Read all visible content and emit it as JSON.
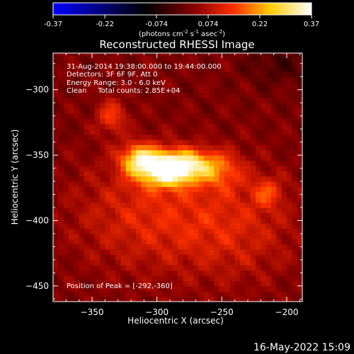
{
  "colorbar": {
    "ticks": [
      "-0.37",
      "-0.22",
      "-0.074",
      "0.074",
      "0.22",
      "0.37"
    ],
    "unit_main": "(photons cm",
    "unit_exp1": "-2",
    "unit_mid": " s",
    "unit_exp2": "-1",
    "unit_tail": " asec",
    "unit_exp3": "-2",
    "unit_close": ")",
    "colors": [
      "#0000ff",
      "#000000",
      "#8b0000",
      "#ff3000",
      "#ffcc00",
      "#ffffff"
    ]
  },
  "chart_data": {
    "type": "heatmap",
    "title": "Reconstructed RHESSI Image",
    "xlabel": "Heliocentric X (arcsec)",
    "ylabel": "Heliocentric Y (arcsec)",
    "xlim": [
      -380,
      -188
    ],
    "ylim": [
      -462,
      -272
    ],
    "x_ticks": [
      -350,
      -300,
      -250,
      -200
    ],
    "y_ticks": [
      -300,
      -350,
      -400,
      -450
    ],
    "x_tick_labels": [
      "−350",
      "−300",
      "−250",
      "−200"
    ],
    "y_tick_labels": [
      "−300",
      "−350",
      "−400",
      "−450"
    ],
    "vmin": -0.37,
    "vmax": 0.37,
    "peak": {
      "x": -292,
      "y": -360
    },
    "sources": [
      {
        "x": -292,
        "y": -360,
        "amp": 0.37,
        "sx": 16,
        "sy": 9
      },
      {
        "x": -314,
        "y": -352,
        "amp": 0.2,
        "sx": 10,
        "sy": 8
      },
      {
        "x": -270,
        "y": -356,
        "amp": 0.12,
        "sx": 14,
        "sy": 8
      },
      {
        "x": -335,
        "y": -320,
        "amp": 0.12,
        "sx": 8,
        "sy": 9
      },
      {
        "x": -250,
        "y": -362,
        "amp": 0.1,
        "sx": 12,
        "sy": 10
      },
      {
        "x": -215,
        "y": -378,
        "amp": 0.1,
        "sx": 8,
        "sy": 8
      },
      {
        "x": -310,
        "y": -395,
        "amp": 0.09,
        "sx": 40,
        "sy": 30
      },
      {
        "x": -240,
        "y": -405,
        "amp": 0.08,
        "sx": 35,
        "sy": 30
      }
    ],
    "annotations": [
      "31-Aug-2014 19:38:00.000 to 19:44:00.000",
      "Detectors: 3F 6F 9F, Att 0",
      "Energy Range: 3.0 - 6.0 keV",
      "Clean     Total counts: 2.85E+04"
    ],
    "peak_label": "Position of Peak = [-292,-360]"
  },
  "timestamp": "16-May-2022 15:09"
}
